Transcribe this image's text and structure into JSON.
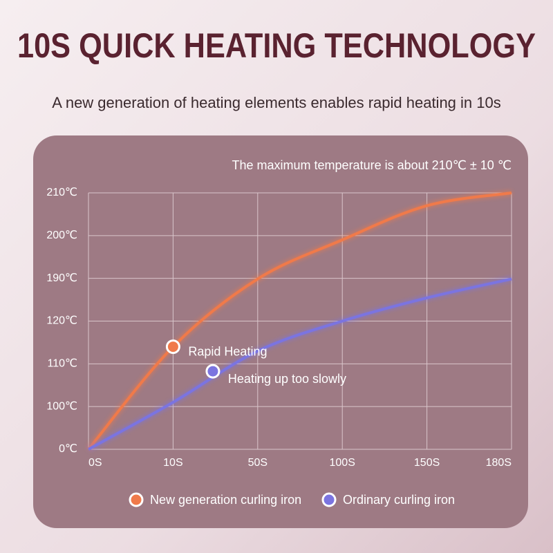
{
  "chart_data": {
    "type": "line",
    "title": "10S QUICK HEATING TECHNOLOGY",
    "subtitle": "A new generation of heating elements enables rapid heating in 10s",
    "note": "The maximum temperature is about 210℃ ± 10 ℃",
    "categories": [
      "0S",
      "10S",
      "50S",
      "100S",
      "150S",
      "180S"
    ],
    "ylim": [
      0,
      210
    ],
    "yticks": [
      {
        "value": 0,
        "label": "0℃"
      },
      {
        "value": 100,
        "label": "100℃"
      },
      {
        "value": 110,
        "label": "110℃"
      },
      {
        "value": 120,
        "label": "120℃"
      },
      {
        "value": 190,
        "label": "190℃"
      },
      {
        "value": 200,
        "label": "200℃"
      },
      {
        "value": 210,
        "label": "210℃"
      }
    ],
    "grid": true,
    "legend": "bottom",
    "series": [
      {
        "name": "New generation curling iron",
        "color": "#f07a4a",
        "values": [
          0,
          114,
          189,
          199,
          207,
          210
        ],
        "annotation": "Rapid Heating"
      },
      {
        "name": "Ordinary curling iron",
        "color": "#7b74e0",
        "values": [
          0,
          101,
          113,
          120,
          158,
          189
        ],
        "annotation": "Heating up too slowly"
      }
    ]
  }
}
